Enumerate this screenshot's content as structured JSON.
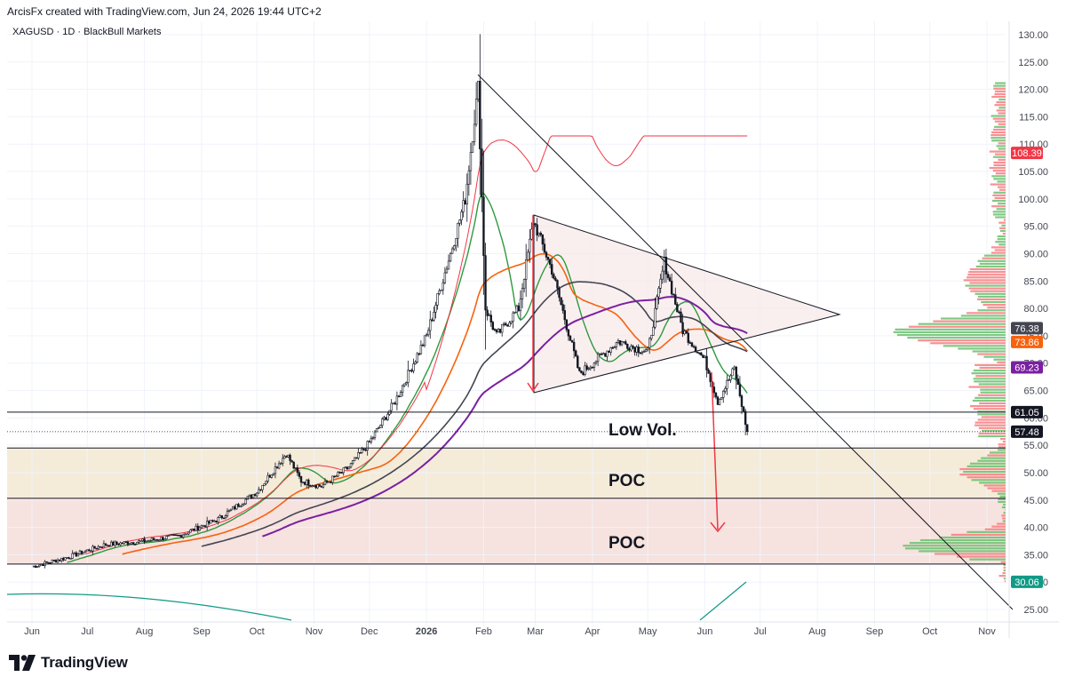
{
  "header": {
    "attribution": "ArcisFx created with TradingView.com, Jun 24, 2026 19:44 UTC+2"
  },
  "symbol_line": "XAGUSD · 1D · BlackBull Markets",
  "footer": {
    "brand": "TradingView"
  },
  "colors": {
    "candle": "#131722",
    "ma_red": "#f23645",
    "ma_green": "#2e9a3e",
    "ma_orange": "#f7620e",
    "ma_dark": "#434651",
    "ma_purple": "#7b1fa2",
    "osc_teal": "#129a86",
    "profile_red": "#f77c80",
    "profile_green": "#6abf6e",
    "zone_top": "#f5ebd9",
    "zone_bottom": "#f6e2de"
  },
  "chart_data": {
    "type": "candlestick",
    "title": "XAGUSD · 1D · BlackBull Markets",
    "y_axis": {
      "min": 25,
      "max": 130,
      "ticks": [
        25,
        30,
        35,
        40,
        45,
        50,
        55,
        60,
        65,
        70,
        75,
        80,
        85,
        90,
        95,
        100,
        105,
        110,
        115,
        120,
        125,
        130
      ],
      "position": "right"
    },
    "x_axis": {
      "labels": [
        "Jun",
        "Jul",
        "Aug",
        "Sep",
        "Oct",
        "Nov",
        "Dec",
        "2026",
        "Feb",
        "Mar",
        "Apr",
        "May",
        "Jun",
        "Jul",
        "Aug",
        "Sep",
        "Oct",
        "Nov"
      ]
    },
    "price_labels": [
      {
        "value": 108.39,
        "text": "108.39",
        "color": "#f23645"
      },
      {
        "value": 76.38,
        "text": "76.38",
        "color": "#434651"
      },
      {
        "value": 73.86,
        "text": "73.86",
        "color": "#f7620e"
      },
      {
        "value": 69.23,
        "text": "69.23",
        "color": "#7b1fa2"
      },
      {
        "value": 61.05,
        "text": "61.05",
        "color": "#131722"
      },
      {
        "value": 57.48,
        "text": "57.48",
        "color": "#131722"
      },
      {
        "value": 30.06,
        "text": "30.06",
        "color": "#129a86"
      }
    ],
    "horizontal_levels": [
      61.05,
      54.5,
      45.3,
      33.3
    ],
    "zones": [
      {
        "from": 45.3,
        "to": 54.5,
        "label": "POC"
      },
      {
        "from": 33.3,
        "to": 45.3,
        "label": "POC"
      }
    ],
    "annotations": [
      "Low Vol.",
      "POC",
      "POC"
    ],
    "price_path": [
      [
        "2025-06-01",
        32.8
      ],
      [
        "2025-06-20",
        34.5
      ],
      [
        "2025-07-10",
        36.8
      ],
      [
        "2025-08-01",
        37.5
      ],
      [
        "2025-08-20",
        38.5
      ],
      [
        "2025-09-10",
        41.5
      ],
      [
        "2025-10-01",
        46.5
      ],
      [
        "2025-10-17",
        53.5
      ],
      [
        "2025-10-25",
        48.5
      ],
      [
        "2025-11-05",
        47.5
      ],
      [
        "2025-11-20",
        51.0
      ],
      [
        "2025-12-01",
        55.5
      ],
      [
        "2025-12-15",
        63.0
      ],
      [
        "2026-01-01",
        75.0
      ],
      [
        "2026-01-14",
        90.0
      ],
      [
        "2026-01-22",
        100.0
      ],
      [
        "2026-01-29",
        120.5
      ],
      [
        "2026-02-02",
        80.0
      ],
      [
        "2026-02-08",
        75.0
      ],
      [
        "2026-02-20",
        80.0
      ],
      [
        "2026-02-28",
        96.0
      ],
      [
        "2026-03-10",
        87.0
      ],
      [
        "2026-03-25",
        68.0
      ],
      [
        "2026-04-15",
        74.0
      ],
      [
        "2026-05-01",
        72.0
      ],
      [
        "2026-05-10",
        88.5
      ],
      [
        "2026-05-20",
        76.0
      ],
      [
        "2026-06-01",
        70.5
      ],
      [
        "2026-06-08",
        63.0
      ],
      [
        "2026-06-17",
        69.0
      ],
      [
        "2026-06-24",
        57.5
      ]
    ],
    "moving_averages": [
      {
        "name": "",
        "color": "#f23645",
        "last": 108.39
      },
      {
        "name": "",
        "color": "#2e9a3e",
        "last": 70.5
      },
      {
        "name": "",
        "color": "#f7620e",
        "last": 73.86
      },
      {
        "name": "",
        "color": "#434651",
        "last": 76.38
      },
      {
        "name": "",
        "color": "#7b1fa2",
        "last": 69.23
      }
    ],
    "oscillator_last": 30.06,
    "grid": true
  }
}
